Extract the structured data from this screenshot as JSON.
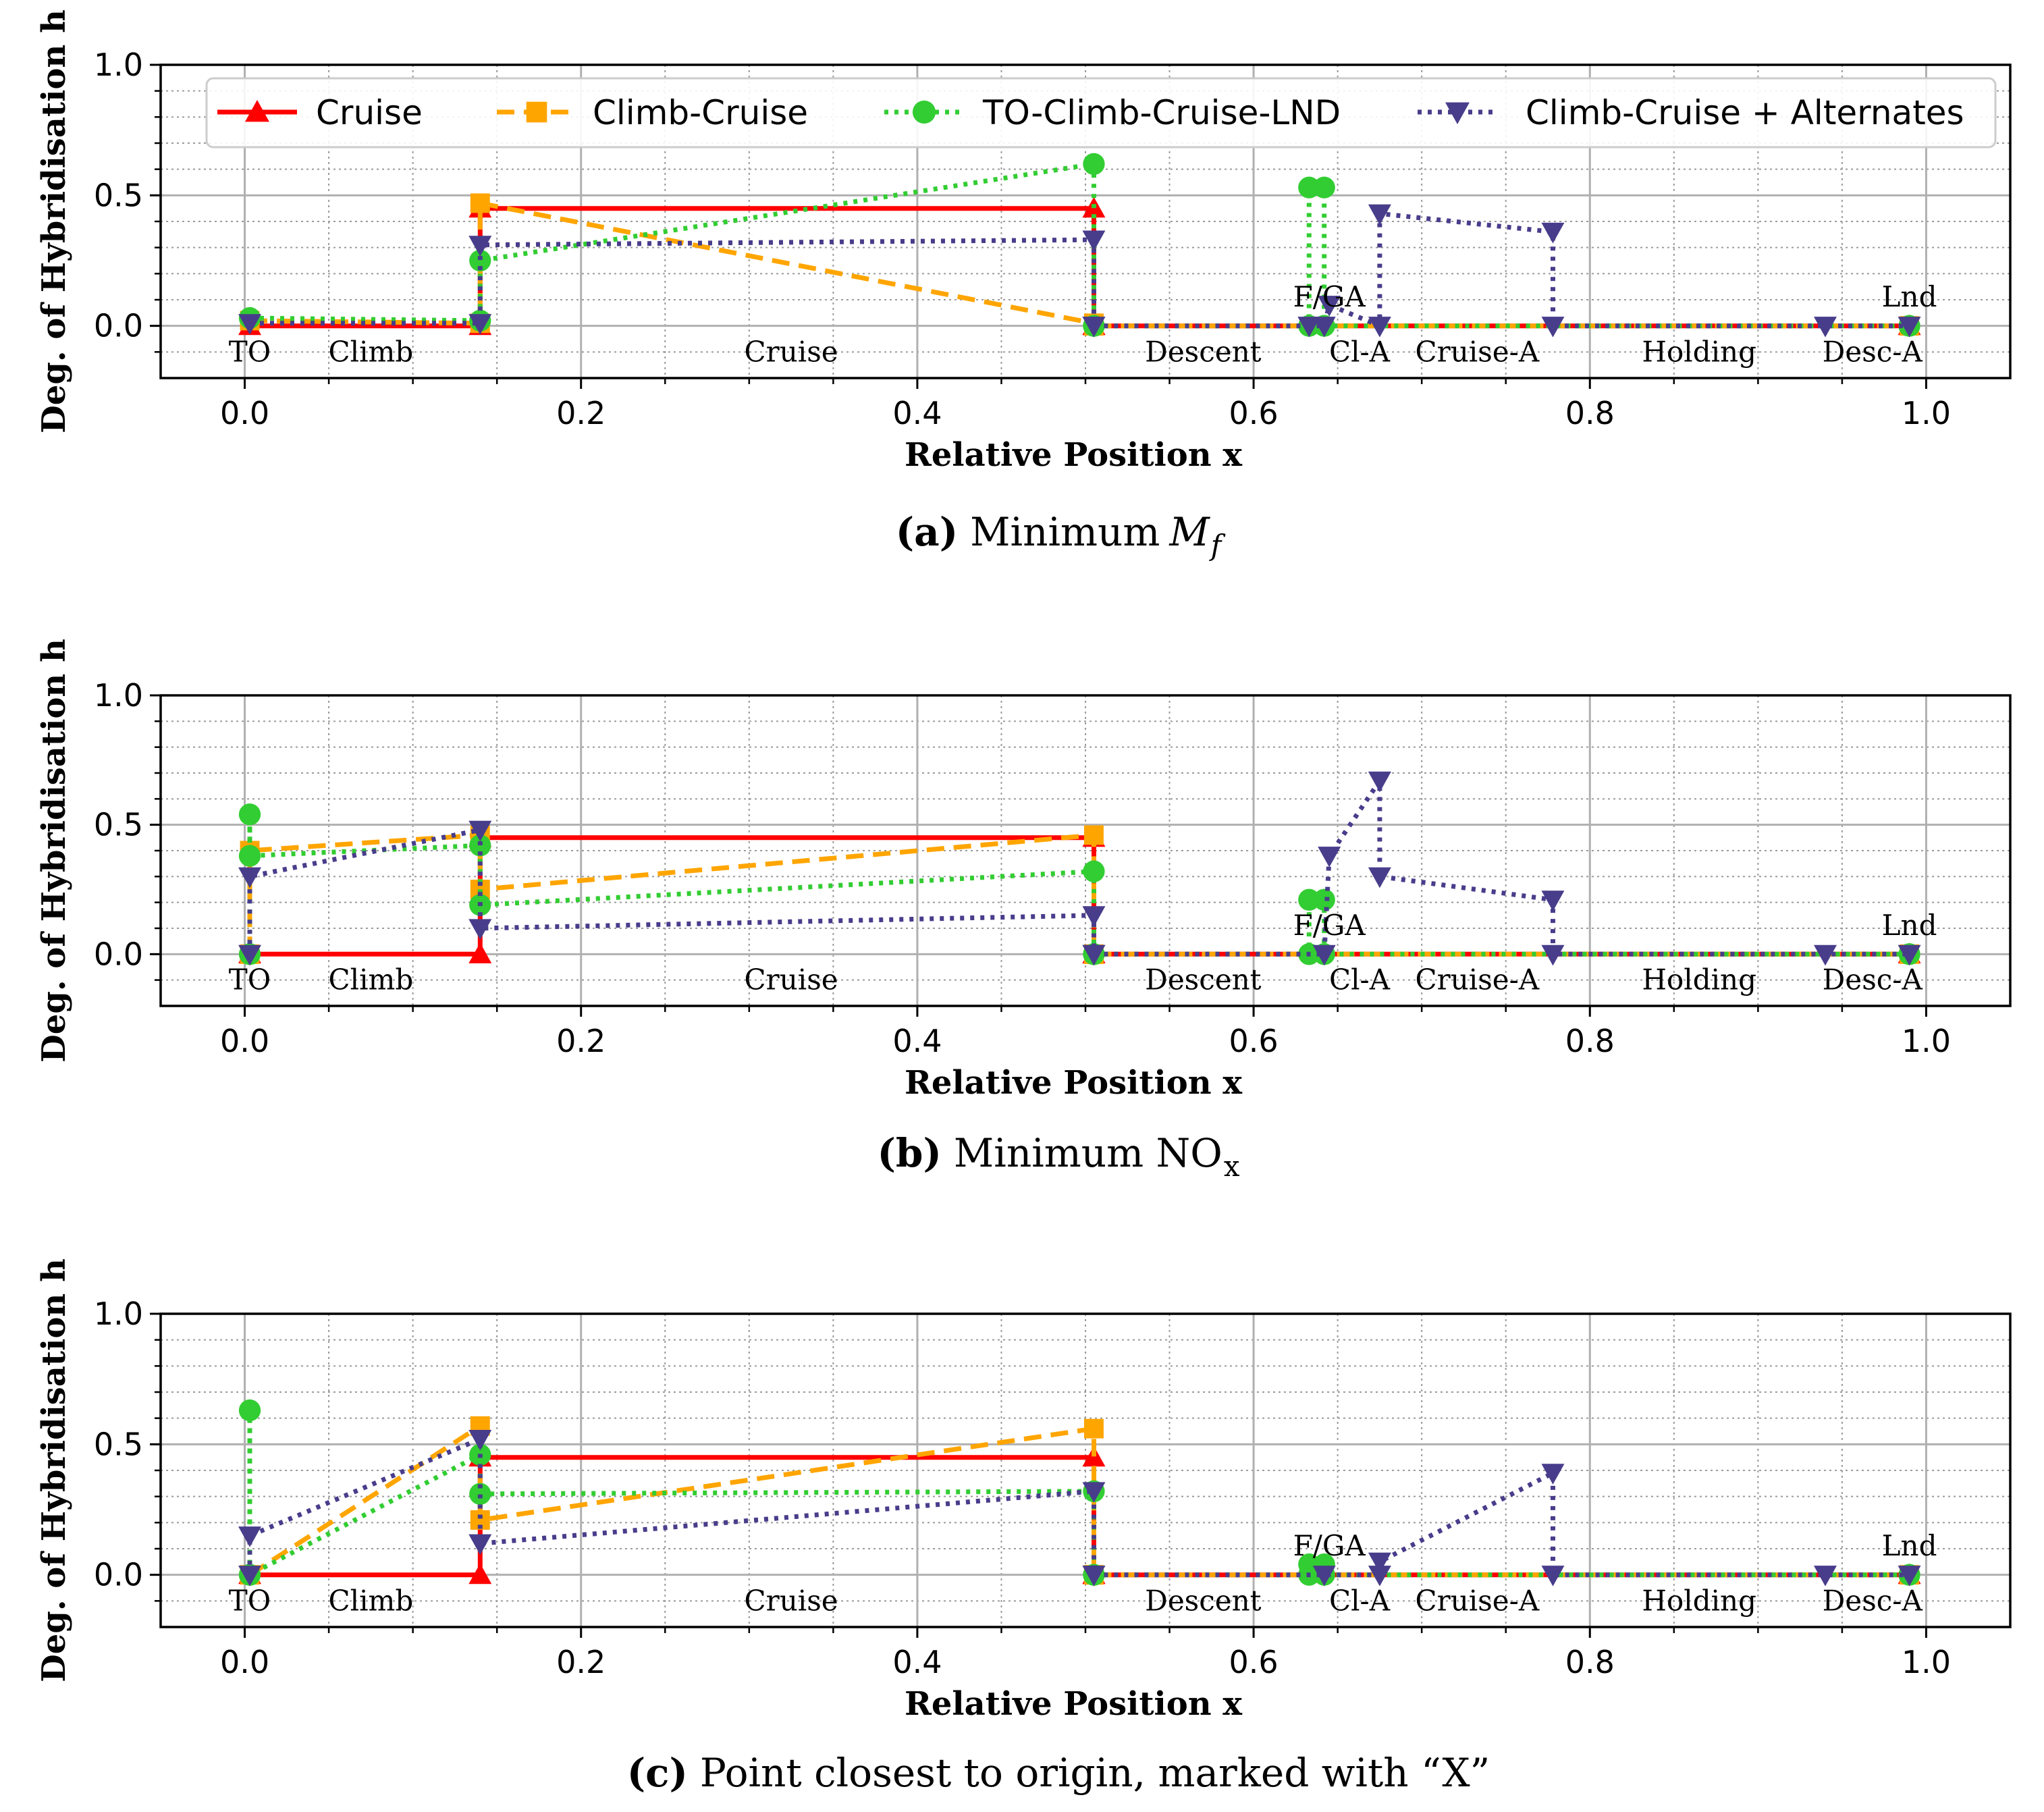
{
  "legend": [
    {
      "key": "cruise",
      "label": "Cruise",
      "color": "#ff0000",
      "dash": "solid",
      "marker": "triangle-up"
    },
    {
      "key": "climb_cruise",
      "label": "Climb-Cruise",
      "color": "#ffa500",
      "dash": "dashed",
      "marker": "square"
    },
    {
      "key": "to_climb_cruise_lnd",
      "label": "TO-Climb-Cruise-LND",
      "color": "#32cd32",
      "dash": "dotted",
      "marker": "circle"
    },
    {
      "key": "climb_cruise_alt",
      "label": "Climb-Cruise + Alternates",
      "color": "#483d8b",
      "dash": "dotted",
      "marker": "triangle-down"
    }
  ],
  "chart_data": [
    {
      "type": "line",
      "caption": {
        "letter": "(a)",
        "text": "Minimum",
        "math": "M",
        "sub": "f"
      },
      "xlabel": "Relative Position x",
      "ylabel": "Deg. of Hybridisation h",
      "xlim": [
        -0.05,
        1.05
      ],
      "ylim": [
        -0.2,
        1.0
      ],
      "xticks": [
        "0.0",
        "0.2",
        "0.4",
        "0.6",
        "0.8",
        "1.0"
      ],
      "yticks": [
        "0.0",
        "0.5",
        "1.0"
      ],
      "grid": true,
      "legend_position": "top",
      "phase_labels": [
        {
          "text": "TO",
          "x": 0.003,
          "y": -0.1
        },
        {
          "text": "Climb",
          "x": 0.075,
          "y": -0.1
        },
        {
          "text": "Cruise",
          "x": 0.325,
          "y": -0.1
        },
        {
          "text": "Descent",
          "x": 0.57,
          "y": -0.1
        },
        {
          "text": "Cl-A",
          "x": 0.663,
          "y": -0.1
        },
        {
          "text": "Cruise-A",
          "x": 0.733,
          "y": -0.1
        },
        {
          "text": "Holding",
          "x": 0.865,
          "y": -0.1
        },
        {
          "text": "Desc-A",
          "x": 0.968,
          "y": -0.1
        },
        {
          "text": "F/GA",
          "x": 0.645,
          "y": 0.11
        },
        {
          "text": "Lnd",
          "x": 0.99,
          "y": 0.11
        }
      ],
      "series": [
        {
          "key": "cruise",
          "segments": [
            [
              [
                0.003,
                0.0
              ],
              [
                0.14,
                0.0
              ],
              [
                0.14,
                0.45
              ],
              [
                0.505,
                0.45
              ],
              [
                0.505,
                0.0
              ]
            ],
            [
              [
                0.505,
                0.0
              ],
              [
                0.99,
                0.0
              ]
            ]
          ]
        },
        {
          "key": "climb_cruise",
          "segments": [
            [
              [
                0.003,
                0.02
              ],
              [
                0.14,
                0.01
              ],
              [
                0.14,
                0.47
              ],
              [
                0.505,
                0.01
              ]
            ],
            [
              [
                0.505,
                0.0
              ],
              [
                0.99,
                0.0
              ]
            ]
          ]
        },
        {
          "key": "to_climb_cruise_lnd",
          "segments": [
            [
              [
                0.003,
                0.03
              ],
              [
                0.14,
                0.02
              ],
              [
                0.14,
                0.25
              ],
              [
                0.505,
                0.62
              ],
              [
                0.505,
                0.0
              ]
            ],
            [
              [
                0.505,
                0.0
              ],
              [
                0.633,
                0.0
              ],
              [
                0.633,
                0.53
              ],
              [
                0.642,
                0.53
              ],
              [
                0.642,
                0.0
              ],
              [
                0.99,
                0.0
              ]
            ]
          ]
        },
        {
          "key": "climb_cruise_alt",
          "segments": [
            [
              [
                0.003,
                0.01
              ],
              [
                0.14,
                0.01
              ],
              [
                0.14,
                0.31
              ],
              [
                0.505,
                0.33
              ],
              [
                0.505,
                0.0
              ]
            ],
            [
              [
                0.505,
                0.0
              ],
              [
                0.633,
                0.0
              ],
              [
                0.642,
                0.0
              ],
              [
                0.645,
                0.08
              ],
              [
                0.675,
                0.0
              ],
              [
                0.675,
                0.43
              ],
              [
                0.778,
                0.36
              ],
              [
                0.778,
                0.0
              ],
              [
                0.94,
                0.0
              ],
              [
                0.99,
                0.0
              ]
            ]
          ]
        }
      ]
    },
    {
      "type": "line",
      "caption": {
        "letter": "(b)",
        "text": "Minimum NO",
        "math": "",
        "sub": "x"
      },
      "xlabel": "Relative Position x",
      "ylabel": "Deg. of Hybridisation h",
      "xlim": [
        -0.05,
        1.05
      ],
      "ylim": [
        -0.2,
        1.0
      ],
      "xticks": [
        "0.0",
        "0.2",
        "0.4",
        "0.6",
        "0.8",
        "1.0"
      ],
      "yticks": [
        "0.0",
        "0.5",
        "1.0"
      ],
      "grid": true,
      "phase_labels": [
        {
          "text": "TO",
          "x": 0.003,
          "y": -0.1
        },
        {
          "text": "Climb",
          "x": 0.075,
          "y": -0.1
        },
        {
          "text": "Cruise",
          "x": 0.325,
          "y": -0.1
        },
        {
          "text": "Descent",
          "x": 0.57,
          "y": -0.1
        },
        {
          "text": "Cl-A",
          "x": 0.663,
          "y": -0.1
        },
        {
          "text": "Cruise-A",
          "x": 0.733,
          "y": -0.1
        },
        {
          "text": "Holding",
          "x": 0.865,
          "y": -0.1
        },
        {
          "text": "Desc-A",
          "x": 0.968,
          "y": -0.1
        },
        {
          "text": "F/GA",
          "x": 0.645,
          "y": 0.11
        },
        {
          "text": "Lnd",
          "x": 0.99,
          "y": 0.11
        }
      ],
      "series": [
        {
          "key": "cruise",
          "segments": [
            [
              [
                0.003,
                0.0
              ],
              [
                0.14,
                0.0
              ],
              [
                0.14,
                0.45
              ],
              [
                0.505,
                0.45
              ],
              [
                0.505,
                0.0
              ]
            ],
            [
              [
                0.505,
                0.0
              ],
              [
                0.99,
                0.0
              ]
            ]
          ]
        },
        {
          "key": "climb_cruise",
          "segments": [
            [
              [
                0.003,
                0.0
              ],
              [
                0.003,
                0.4
              ],
              [
                0.14,
                0.46
              ],
              [
                0.14,
                0.25
              ],
              [
                0.505,
                0.46
              ],
              [
                0.505,
                0.0
              ]
            ],
            [
              [
                0.505,
                0.0
              ],
              [
                0.99,
                0.0
              ]
            ]
          ]
        },
        {
          "key": "to_climb_cruise_lnd",
          "segments": [
            [
              [
                0.003,
                0.0
              ],
              [
                0.003,
                0.54
              ],
              [
                0.003,
                0.38
              ],
              [
                0.14,
                0.42
              ],
              [
                0.14,
                0.19
              ],
              [
                0.505,
                0.32
              ],
              [
                0.505,
                0.0
              ]
            ],
            [
              [
                0.505,
                0.0
              ],
              [
                0.633,
                0.0
              ],
              [
                0.633,
                0.21
              ],
              [
                0.642,
                0.21
              ],
              [
                0.642,
                0.0
              ],
              [
                0.99,
                0.0
              ]
            ]
          ]
        },
        {
          "key": "climb_cruise_alt",
          "segments": [
            [
              [
                0.003,
                0.0
              ],
              [
                0.003,
                0.3
              ],
              [
                0.14,
                0.48
              ],
              [
                0.14,
                0.1
              ],
              [
                0.505,
                0.15
              ],
              [
                0.505,
                0.0
              ]
            ],
            [
              [
                0.505,
                0.0
              ],
              [
                0.642,
                0.0
              ],
              [
                0.645,
                0.38
              ],
              [
                0.675,
                0.67
              ],
              [
                0.675,
                0.3
              ],
              [
                0.778,
                0.21
              ],
              [
                0.778,
                0.0
              ],
              [
                0.94,
                0.0
              ],
              [
                0.99,
                0.0
              ]
            ]
          ]
        }
      ]
    },
    {
      "type": "line",
      "caption": {
        "letter": "(c)",
        "text": "Point closest to origin, marked with “X”",
        "math": "",
        "sub": ""
      },
      "xlabel": "Relative Position x",
      "ylabel": "Deg. of Hybridisation h",
      "xlim": [
        -0.05,
        1.05
      ],
      "ylim": [
        -0.2,
        1.0
      ],
      "xticks": [
        "0.0",
        "0.2",
        "0.4",
        "0.6",
        "0.8",
        "1.0"
      ],
      "yticks": [
        "0.0",
        "0.5",
        "1.0"
      ],
      "grid": true,
      "phase_labels": [
        {
          "text": "TO",
          "x": 0.003,
          "y": -0.1
        },
        {
          "text": "Climb",
          "x": 0.075,
          "y": -0.1
        },
        {
          "text": "Cruise",
          "x": 0.325,
          "y": -0.1
        },
        {
          "text": "Descent",
          "x": 0.57,
          "y": -0.1
        },
        {
          "text": "Cl-A",
          "x": 0.663,
          "y": -0.1
        },
        {
          "text": "Cruise-A",
          "x": 0.733,
          "y": -0.1
        },
        {
          "text": "Holding",
          "x": 0.865,
          "y": -0.1
        },
        {
          "text": "Desc-A",
          "x": 0.968,
          "y": -0.1
        },
        {
          "text": "F/GA",
          "x": 0.645,
          "y": 0.11
        },
        {
          "text": "Lnd",
          "x": 0.99,
          "y": 0.11
        }
      ],
      "series": [
        {
          "key": "cruise",
          "segments": [
            [
              [
                0.003,
                0.0
              ],
              [
                0.14,
                0.0
              ],
              [
                0.14,
                0.45
              ],
              [
                0.505,
                0.45
              ],
              [
                0.505,
                0.0
              ]
            ],
            [
              [
                0.505,
                0.0
              ],
              [
                0.99,
                0.0
              ]
            ]
          ]
        },
        {
          "key": "climb_cruise",
          "segments": [
            [
              [
                0.003,
                0.0
              ],
              [
                0.14,
                0.57
              ],
              [
                0.14,
                0.21
              ],
              [
                0.505,
                0.56
              ],
              [
                0.505,
                0.0
              ]
            ],
            [
              [
                0.505,
                0.0
              ],
              [
                0.99,
                0.0
              ]
            ]
          ]
        },
        {
          "key": "to_climb_cruise_lnd",
          "segments": [
            [
              [
                0.003,
                0.0
              ],
              [
                0.003,
                0.63
              ],
              [
                0.003,
                0.0
              ],
              [
                0.14,
                0.46
              ],
              [
                0.14,
                0.31
              ],
              [
                0.505,
                0.32
              ],
              [
                0.505,
                0.0
              ]
            ],
            [
              [
                0.505,
                0.0
              ],
              [
                0.633,
                0.0
              ],
              [
                0.633,
                0.04
              ],
              [
                0.642,
                0.04
              ],
              [
                0.642,
                0.0
              ],
              [
                0.99,
                0.0
              ]
            ]
          ]
        },
        {
          "key": "climb_cruise_alt",
          "segments": [
            [
              [
                0.003,
                0.0
              ],
              [
                0.003,
                0.15
              ],
              [
                0.14,
                0.52
              ],
              [
                0.14,
                0.12
              ],
              [
                0.505,
                0.32
              ],
              [
                0.505,
                0.0
              ]
            ],
            [
              [
                0.505,
                0.0
              ],
              [
                0.642,
                0.0
              ],
              [
                0.675,
                0.0
              ],
              [
                0.675,
                0.05
              ],
              [
                0.778,
                0.39
              ],
              [
                0.778,
                0.0
              ],
              [
                0.94,
                0.0
              ],
              [
                0.99,
                0.0
              ]
            ]
          ]
        }
      ]
    }
  ]
}
